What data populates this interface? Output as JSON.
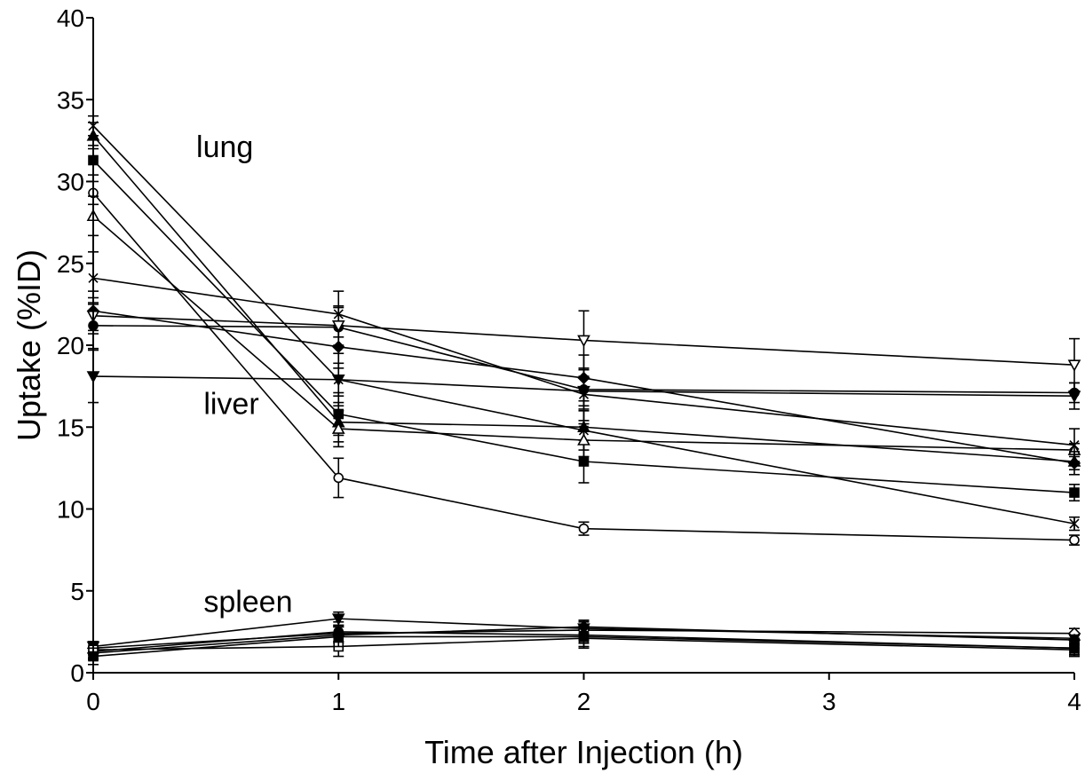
{
  "chart_data": {
    "type": "line",
    "xlabel": "Time after Injection (h)",
    "ylabel": "Uptake (%ID)",
    "xlim": [
      0,
      4
    ],
    "ylim": [
      0,
      40
    ],
    "xticks": [
      0,
      1,
      2,
      3,
      4
    ],
    "yticks": [
      0,
      5,
      10,
      15,
      20,
      25,
      30,
      35,
      40
    ],
    "grid": false,
    "annotations": [
      {
        "text": "lung",
        "x": 0.42,
        "y": 31.5
      },
      {
        "text": "liver",
        "x": 0.45,
        "y": 15.8
      },
      {
        "text": "spleen",
        "x": 0.45,
        "y": 3.7
      }
    ],
    "x": [
      0,
      1,
      2,
      4
    ],
    "series": [
      {
        "group": "lung",
        "marker": "asterisk",
        "values": [
          33.4,
          17.9,
          14.8,
          9.1
        ],
        "errors": [
          0.6,
          1.6,
          1.2,
          0.4
        ]
      },
      {
        "group": "lung",
        "marker": "filled-square",
        "values": [
          31.3,
          15.8,
          12.9,
          11.0
        ],
        "errors": [
          0.9,
          1.3,
          1.3,
          0.5
        ]
      },
      {
        "group": "lung",
        "marker": "filled-triangle",
        "values": [
          32.8,
          15.3,
          15.0,
          12.9
        ],
        "errors": [
          0.8,
          1.2,
          1.0,
          0.5
        ]
      },
      {
        "group": "lung",
        "marker": "open-circle",
        "values": [
          29.3,
          11.9,
          8.8,
          8.1
        ],
        "errors": [
          0.7,
          1.2,
          0.4,
          0.3
        ]
      },
      {
        "group": "lung",
        "marker": "open-triangle",
        "values": [
          27.9,
          14.9,
          14.2,
          13.6
        ],
        "errors": [
          1.2,
          1.1,
          1.0,
          0.4
        ]
      },
      {
        "group": "liver",
        "marker": "x",
        "values": [
          24.1,
          21.9,
          17.0,
          13.9
        ],
        "errors": [
          1.6,
          1.4,
          1.6,
          1.0
        ]
      },
      {
        "group": "liver",
        "marker": "filled-diamond",
        "values": [
          22.1,
          19.9,
          18.0,
          12.8
        ],
        "errors": [
          1.2,
          1.3,
          1.4,
          0.7
        ]
      },
      {
        "group": "liver",
        "marker": "filled-circle",
        "values": [
          21.2,
          21.1,
          17.3,
          17.1
        ],
        "errors": [
          1.4,
          1.2,
          1.2,
          0.6
        ]
      },
      {
        "group": "liver",
        "marker": "open-inverted-triangle",
        "values": [
          21.8,
          21.2,
          20.3,
          18.8
        ],
        "errors": [
          1.1,
          1.2,
          1.8,
          1.6
        ]
      },
      {
        "group": "liver",
        "marker": "filled-inverted-triangle",
        "values": [
          18.1,
          17.9,
          17.2,
          16.9
        ],
        "errors": [
          1.6,
          1.0,
          0.9,
          0.8
        ]
      },
      {
        "group": "spleen",
        "marker": "filled-inverted-triangle",
        "values": [
          1.6,
          3.3,
          2.7,
          2.1
        ],
        "errors": [
          0.3,
          0.4,
          0.4,
          0.2
        ]
      },
      {
        "group": "spleen",
        "marker": "open-diamond",
        "values": [
          1.5,
          2.4,
          2.6,
          2.4
        ],
        "errors": [
          0.4,
          0.5,
          0.6,
          0.3
        ]
      },
      {
        "group": "spleen",
        "marker": "filled-diamond",
        "values": [
          1.2,
          2.3,
          2.8,
          2.0
        ],
        "errors": [
          0.4,
          0.5,
          0.4,
          0.3
        ]
      },
      {
        "group": "spleen",
        "marker": "filled-circle",
        "values": [
          1.3,
          2.5,
          2.3,
          1.5
        ],
        "errors": [
          0.5,
          0.6,
          0.5,
          0.4
        ]
      },
      {
        "group": "spleen",
        "marker": "open-square",
        "values": [
          1.4,
          1.6,
          2.1,
          1.4
        ],
        "errors": [
          0.5,
          0.6,
          0.6,
          0.4
        ]
      },
      {
        "group": "spleen",
        "marker": "filled-square",
        "values": [
          1.0,
          2.2,
          2.2,
          1.5
        ],
        "errors": [
          0.5,
          0.6,
          0.6,
          0.5
        ]
      }
    ]
  }
}
